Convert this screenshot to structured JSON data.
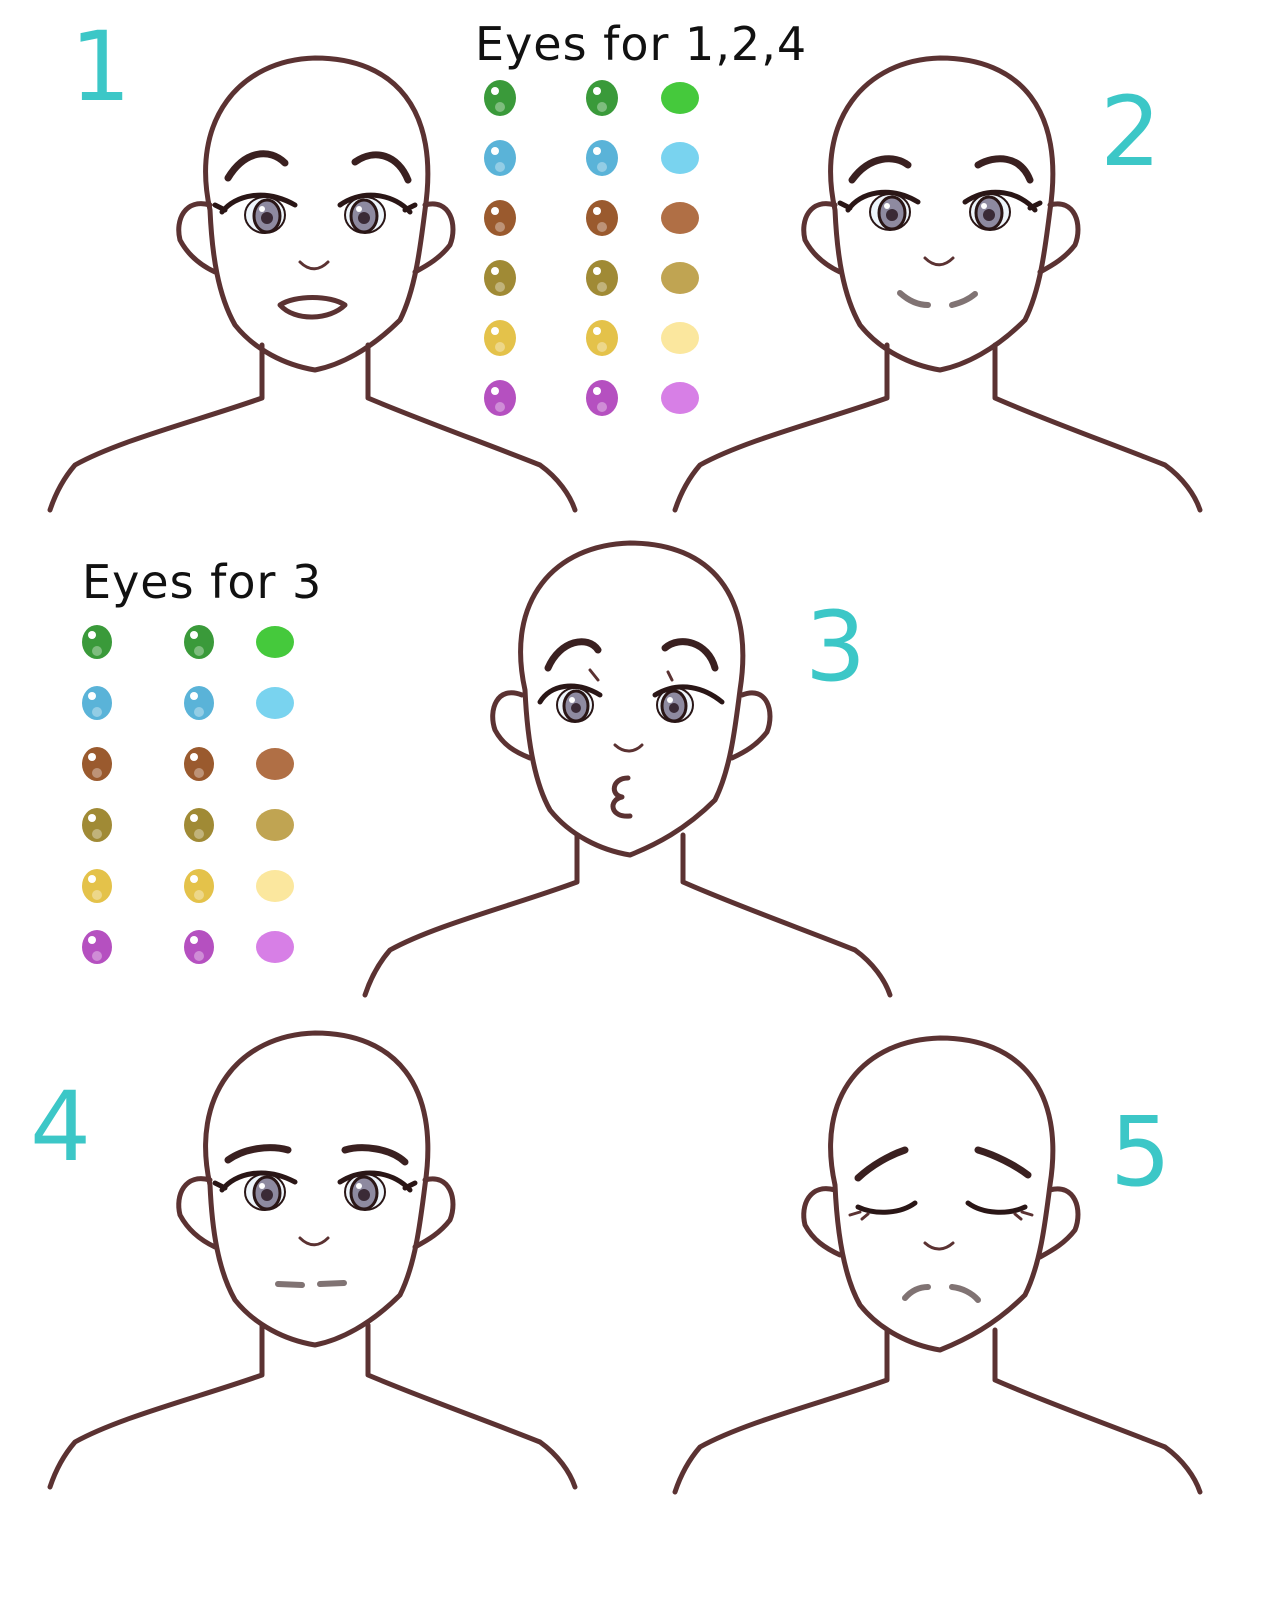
{
  "headings": {
    "eyes_124": "Eyes for 1,2,4",
    "eyes_3": "Eyes for 3"
  },
  "panel_numbers": [
    "1",
    "2",
    "3",
    "4",
    "5"
  ],
  "swatch_colors": {
    "green": [
      "#3a9a3a",
      "#3a9a3a",
      "#45c93c"
    ],
    "blue": [
      "#5ab3d8",
      "#5ab3d8",
      "#79d3ef"
    ],
    "brown": [
      "#9a5a2e",
      "#9a5a2e",
      "#b06f45"
    ],
    "olive": [
      "#a08a35",
      "#a08a35",
      "#c0a452"
    ],
    "yellow": [
      "#e4c24a",
      "#e4c24a",
      "#fbe79e"
    ],
    "purple": [
      "#b550c0",
      "#b550c0",
      "#d77fe6"
    ]
  },
  "colors": {
    "outline": "#5b3232",
    "number_accent": "#3cc7c7"
  }
}
